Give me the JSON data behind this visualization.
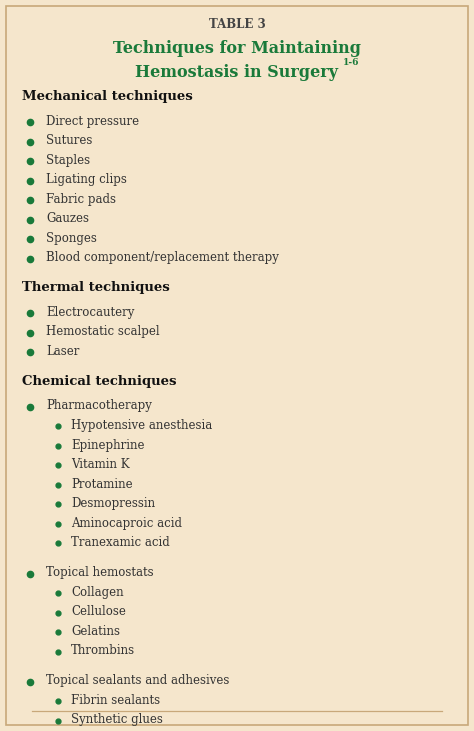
{
  "background_color": "#f5e6cc",
  "border_color": "#c8a87a",
  "table_label": "TABLE 3",
  "title_line1": "Techniques for Maintaining",
  "title_line2": "Hemostasis in Surgery",
  "title_superscript": "1-6",
  "title_color": "#1a7a3a",
  "table_label_color": "#444444",
  "heading_color": "#111111",
  "text_color": "#333333",
  "bullet_color": "#1a7a3a",
  "figsize": [
    4.74,
    7.31
  ],
  "dpi": 100,
  "sections": [
    {
      "heading": "Mechanical techniques",
      "items": [
        {
          "level": 1,
          "text": "Direct pressure"
        },
        {
          "level": 1,
          "text": "Sutures"
        },
        {
          "level": 1,
          "text": "Staples"
        },
        {
          "level": 1,
          "text": "Ligating clips"
        },
        {
          "level": 1,
          "text": "Fabric pads"
        },
        {
          "level": 1,
          "text": "Gauzes"
        },
        {
          "level": 1,
          "text": "Sponges"
        },
        {
          "level": 1,
          "text": "Blood component/replacement therapy"
        }
      ]
    },
    {
      "heading": "Thermal techniques",
      "items": [
        {
          "level": 1,
          "text": "Electrocautery"
        },
        {
          "level": 1,
          "text": "Hemostatic scalpel"
        },
        {
          "level": 1,
          "text": "Laser"
        }
      ]
    },
    {
      "heading": "Chemical techniques",
      "items": [
        {
          "level": 1,
          "text": "Pharmacotherapy"
        },
        {
          "level": 2,
          "text": "Hypotensive anesthesia"
        },
        {
          "level": 2,
          "text": "Epinephrine"
        },
        {
          "level": 2,
          "text": "Vitamin K"
        },
        {
          "level": 2,
          "text": "Protamine"
        },
        {
          "level": 2,
          "text": "Desmopressin"
        },
        {
          "level": 2,
          "text": "Aminocaproic acid"
        },
        {
          "level": 2,
          "text": "Tranexamic acid"
        },
        {
          "level": 0,
          "text": ""
        },
        {
          "level": 1,
          "text": "Topical hemostats"
        },
        {
          "level": 2,
          "text": "Collagen"
        },
        {
          "level": 2,
          "text": "Cellulose"
        },
        {
          "level": 2,
          "text": "Gelatins"
        },
        {
          "level": 2,
          "text": "Thrombins"
        },
        {
          "level": 0,
          "text": ""
        },
        {
          "level": 1,
          "text": "Topical sealants and adhesives"
        },
        {
          "level": 2,
          "text": "Fibrin sealants"
        },
        {
          "level": 2,
          "text": "Synthetic glues"
        }
      ]
    }
  ]
}
